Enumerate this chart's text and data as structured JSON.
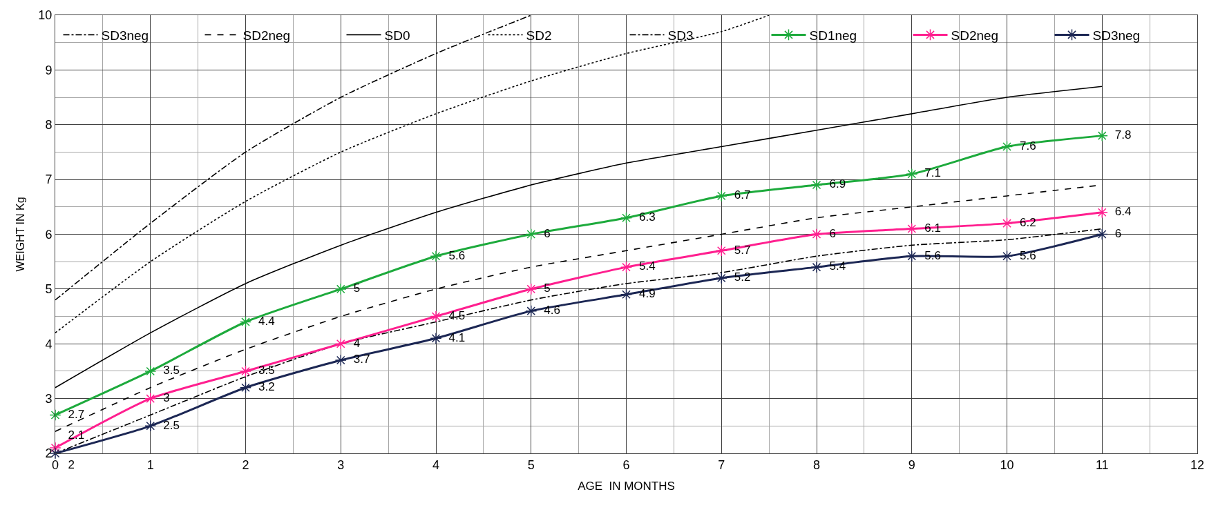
{
  "chart_data": {
    "type": "line",
    "xlabel": "AGE  IN MONTHS",
    "ylabel": "WEIGHT IN Kg",
    "x": [
      0,
      1,
      2,
      3,
      4,
      5,
      6,
      7,
      8,
      9,
      10,
      11
    ],
    "xlim": [
      0,
      12
    ],
    "xticks": [
      0,
      1,
      2,
      3,
      4,
      5,
      6,
      7,
      8,
      9,
      10,
      11,
      12
    ],
    "ylim": [
      2,
      10
    ],
    "yticks": [
      2,
      3,
      4,
      5,
      6,
      7,
      8,
      9,
      10
    ],
    "grid": true,
    "legend": "top",
    "series": [
      {
        "name": "SD3neg",
        "color": "#000000",
        "line_style": "dashdot",
        "marker": "none",
        "values": [
          2.0,
          2.7,
          3.4,
          4.0,
          4.4,
          4.8,
          5.1,
          5.3,
          5.6,
          5.8,
          5.9,
          6.1
        ]
      },
      {
        "name": "SD2neg",
        "color": "#000000",
        "line_style": "dashed",
        "marker": "none",
        "values": [
          2.4,
          3.2,
          3.9,
          4.5,
          5.0,
          5.4,
          5.7,
          6.0,
          6.3,
          6.5,
          6.7,
          6.9
        ]
      },
      {
        "name": "SD0",
        "color": "#000000",
        "line_style": "solid",
        "marker": "none",
        "values": [
          3.2,
          4.2,
          5.1,
          5.8,
          6.4,
          6.9,
          7.3,
          7.6,
          7.9,
          8.2,
          8.5,
          8.7
        ]
      },
      {
        "name": "SD2",
        "color": "#000000",
        "line_style": "dotted",
        "marker": "none",
        "x": [
          0,
          1,
          2,
          3,
          4,
          5,
          6,
          7,
          7.5
        ],
        "values": [
          4.2,
          5.5,
          6.6,
          7.5,
          8.2,
          8.8,
          9.3,
          9.7,
          10.0
        ]
      },
      {
        "name": "SD3",
        "color": "#000000",
        "line_style": "dashdot",
        "marker": "none",
        "x": [
          0,
          1,
          2,
          3,
          4,
          5
        ],
        "values": [
          4.8,
          6.2,
          7.5,
          8.5,
          9.3,
          10.0
        ]
      },
      {
        "name": "SD1neg",
        "color": "#1daa3c",
        "line_style": "solid",
        "marker": "cross",
        "data_labels": true,
        "values": [
          2.7,
          3.5,
          4.4,
          5,
          5.6,
          6,
          6.3,
          6.7,
          6.9,
          7.1,
          7.6,
          7.8
        ]
      },
      {
        "name": "SD2neg",
        "color": "#ff1f8f",
        "line_style": "solid",
        "marker": "cross",
        "data_labels": true,
        "values": [
          2.1,
          3,
          3.5,
          4,
          4.5,
          5,
          5.4,
          5.7,
          6,
          6.1,
          6.2,
          6.4
        ]
      },
      {
        "name": "SD3neg",
        "color": "#1c2754",
        "line_style": "solid",
        "marker": "cross",
        "data_labels": true,
        "values": [
          2,
          2.5,
          3.2,
          3.7,
          4.1,
          4.6,
          4.9,
          5.2,
          5.4,
          5.6,
          5.6,
          6
        ]
      }
    ]
  }
}
